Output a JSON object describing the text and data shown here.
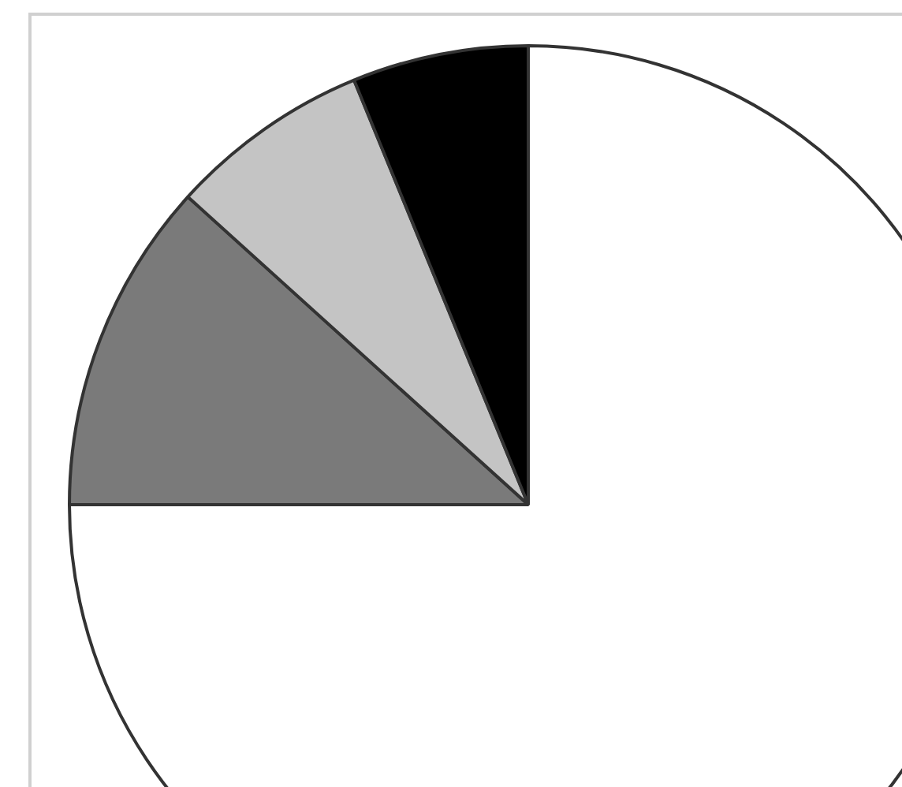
{
  "chart_data": {
    "type": "pie",
    "categories": [
      null,
      null,
      null,
      null
    ],
    "values": [
      75,
      11.7,
      7.1,
      6.2
    ],
    "colors": [
      "#ffffff",
      "#7a7a7a",
      "#c4c4c4",
      "#000000"
    ],
    "legend": false
  }
}
